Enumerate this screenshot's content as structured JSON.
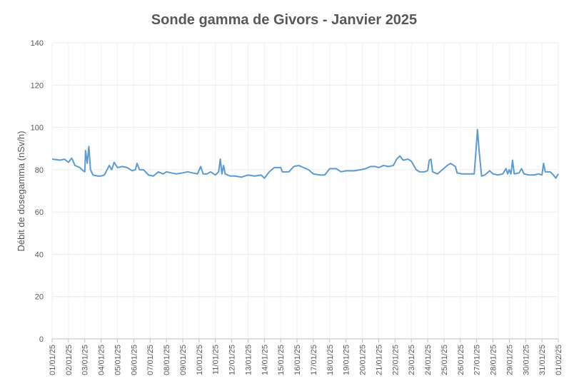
{
  "chart_data": {
    "type": "line",
    "title": "Sonde gamma de Givors - Janvier 2025",
    "y_label": "Débit de dosegamma (nSv/h)",
    "color": "#5b9bd5",
    "grid": true,
    "xlim": [
      0,
      31
    ],
    "xticks": [
      {
        "value": 0,
        "label": "01/01/25"
      },
      {
        "value": 1,
        "label": "02/01/25"
      },
      {
        "value": 2,
        "label": "03/01/25"
      },
      {
        "value": 3,
        "label": "04/01/25"
      },
      {
        "value": 4,
        "label": "05/01/25"
      },
      {
        "value": 5,
        "label": "06/01/25"
      },
      {
        "value": 6,
        "label": "07/01/25"
      },
      {
        "value": 7,
        "label": "08/01/25"
      },
      {
        "value": 8,
        "label": "09/01/25"
      },
      {
        "value": 9,
        "label": "10/01/25"
      },
      {
        "value": 10,
        "label": "11/01/25"
      },
      {
        "value": 11,
        "label": "12/01/25"
      },
      {
        "value": 12,
        "label": "13/01/25"
      },
      {
        "value": 13,
        "label": "14/01/25"
      },
      {
        "value": 14,
        "label": "15/01/25"
      },
      {
        "value": 15,
        "label": "16/01/25"
      },
      {
        "value": 16,
        "label": "17/01/25"
      },
      {
        "value": 17,
        "label": "18/01/25"
      },
      {
        "value": 18,
        "label": "19/01/25"
      },
      {
        "value": 19,
        "label": "20/01/25"
      },
      {
        "value": 20,
        "label": "21/01/25"
      },
      {
        "value": 21,
        "label": "22/01/25"
      },
      {
        "value": 22,
        "label": "23/01/25"
      },
      {
        "value": 23,
        "label": "24/01/25"
      },
      {
        "value": 24,
        "label": "25/01/25"
      },
      {
        "value": 25,
        "label": "26/01/25"
      },
      {
        "value": 26,
        "label": "27/01/25"
      },
      {
        "value": 27,
        "label": "28/01/25"
      },
      {
        "value": 28,
        "label": "29/01/25"
      },
      {
        "value": 29,
        "label": "30/01/25"
      },
      {
        "value": 30,
        "label": "31/01/25"
      },
      {
        "value": 31,
        "label": "01/02/25"
      }
    ],
    "ylim": [
      0,
      140
    ],
    "yticks": [
      0,
      20,
      40,
      60,
      80,
      100,
      120,
      140
    ],
    "x": [
      0,
      0.5,
      0.75,
      1.0,
      1.2,
      1.4,
      1.7,
      1.9,
      2.0,
      2.05,
      2.15,
      2.25,
      2.35,
      2.5,
      2.8,
      3.0,
      3.2,
      3.5,
      3.65,
      3.8,
      4.0,
      4.3,
      4.6,
      4.9,
      5.1,
      5.2,
      5.35,
      5.6,
      5.9,
      6.2,
      6.5,
      6.8,
      7.0,
      7.3,
      7.6,
      8.0,
      8.3,
      8.6,
      8.9,
      9.1,
      9.25,
      9.5,
      9.7,
      10.0,
      10.2,
      10.3,
      10.4,
      10.5,
      10.6,
      10.9,
      11.2,
      11.6,
      12.0,
      12.4,
      12.8,
      13.0,
      13.3,
      13.6,
      14.0,
      14.1,
      14.5,
      14.8,
      15.1,
      15.4,
      15.7,
      16.0,
      16.4,
      16.7,
      17.0,
      17.4,
      17.7,
      18.0,
      18.5,
      18.9,
      19.2,
      19.5,
      19.8,
      20.0,
      20.3,
      20.6,
      20.9,
      21.1,
      21.3,
      21.5,
      21.8,
      22.0,
      22.3,
      22.5,
      22.8,
      23.0,
      23.1,
      23.2,
      23.3,
      23.6,
      23.9,
      24.2,
      24.4,
      24.7,
      24.8,
      25.1,
      25.4,
      25.7,
      25.85,
      25.95,
      26.05,
      26.15,
      26.3,
      26.5,
      26.8,
      27.0,
      27.3,
      27.6,
      27.8,
      27.9,
      28.0,
      28.1,
      28.2,
      28.3,
      28.6,
      28.75,
      28.9,
      29.2,
      29.5,
      29.8,
      30.0,
      30.1,
      30.2,
      30.5,
      30.7,
      30.85,
      31.0
    ],
    "values": [
      85,
      84.5,
      85,
      83.5,
      85.5,
      82,
      81,
      79.5,
      79,
      89,
      83,
      91,
      80,
      77.5,
      77,
      77,
      77.5,
      82,
      80,
      83.5,
      81,
      81.5,
      81,
      79.5,
      80,
      83,
      80,
      80,
      77.5,
      77,
      79,
      78,
      79,
      78.5,
      78,
      78.5,
      79,
      78.5,
      78,
      81.5,
      78,
      78,
      79,
      77.5,
      79,
      85,
      78,
      82,
      78,
      77,
      77,
      76.5,
      77.5,
      77,
      77.5,
      76,
      79,
      81,
      81,
      79,
      79,
      81.5,
      82,
      81,
      80,
      78,
      77.5,
      77.5,
      80.5,
      80.5,
      79,
      79.5,
      79.5,
      80,
      80.5,
      81.5,
      81.5,
      81,
      82,
      81.5,
      82,
      85,
      86.5,
      84.5,
      85,
      84,
      80,
      79,
      79,
      79.5,
      84.5,
      85,
      79,
      78,
      80,
      82,
      83,
      81.5,
      78.5,
      78,
      78,
      78,
      78,
      88,
      99,
      89,
      77,
      77.5,
      79.5,
      78,
      77.5,
      78,
      80.5,
      78,
      80,
      78,
      84.5,
      78,
      78.5,
      80.5,
      78,
      77.5,
      77.5,
      78,
      77.5,
      83,
      79,
      79,
      77.5,
      76,
      78
    ]
  }
}
